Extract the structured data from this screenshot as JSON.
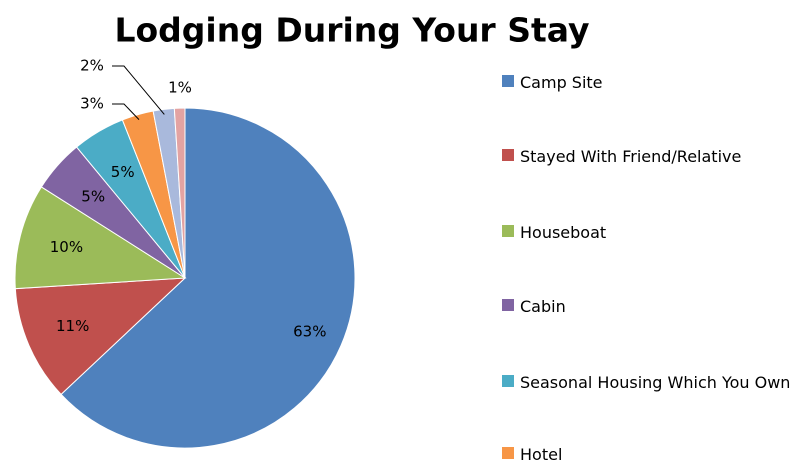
{
  "chart_data": {
    "type": "pie",
    "title": "Lodging During Your Stay",
    "categories": [
      "Camp Site",
      "Stayed With Friend/Relative",
      "Houseboat",
      "Cabin",
      "Seasonal Housing Which You Own",
      "Hotel",
      null,
      null
    ],
    "values": [
      63,
      11,
      10,
      5,
      5,
      3,
      2,
      1
    ],
    "value_labels": [
      "63%",
      "11%",
      "10%",
      "5%",
      "5%",
      "3%",
      "2%",
      "1%"
    ],
    "colors": [
      "#4f81bd",
      "#c0504d",
      "#9bbb59",
      "#8064a2",
      "#4bacc6",
      "#f79646",
      "#a9b9dc",
      "#e3a3a2"
    ],
    "legend": "right"
  }
}
